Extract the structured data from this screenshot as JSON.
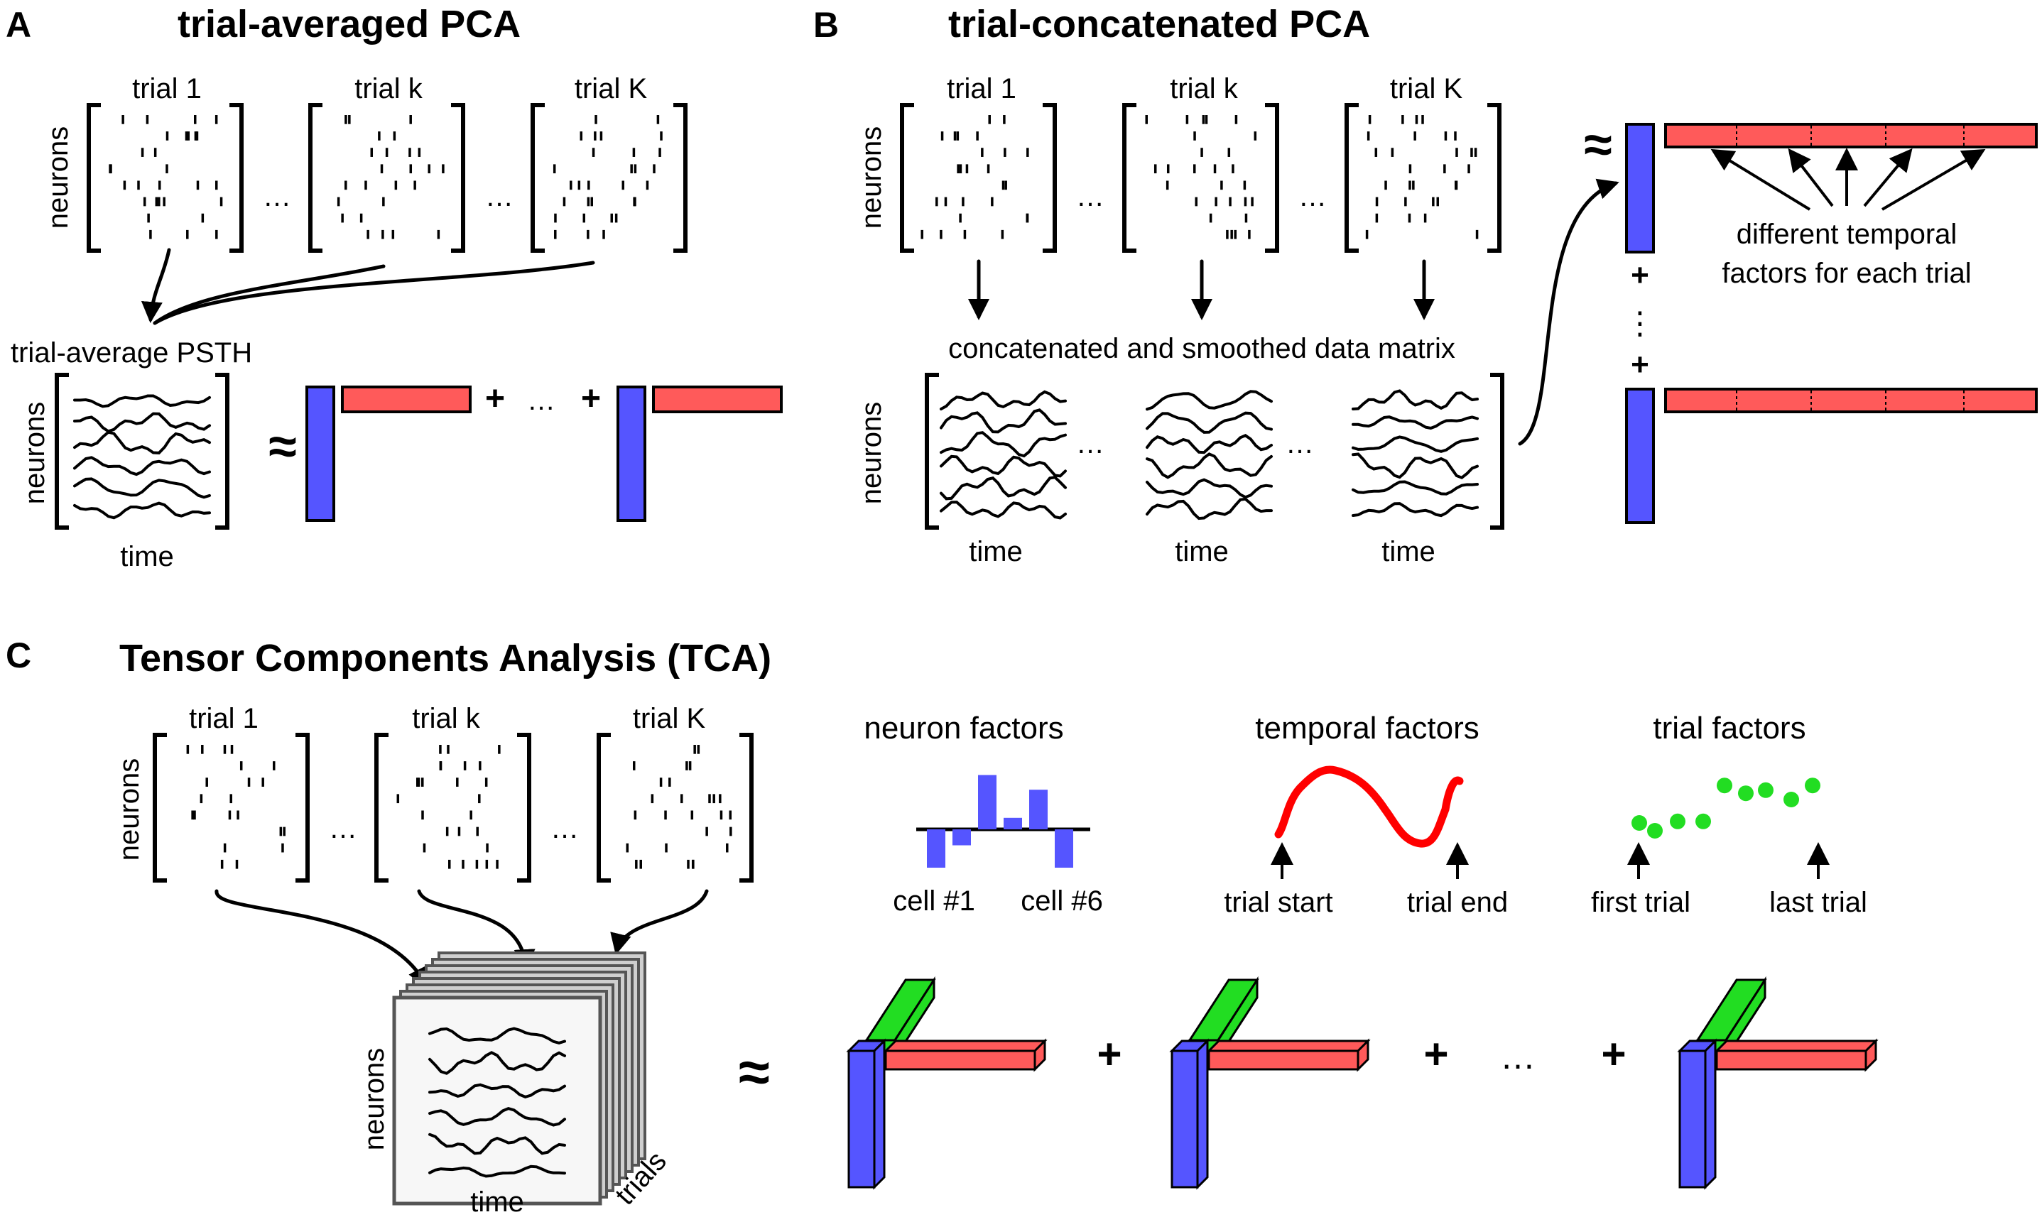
{
  "panels": {
    "a": {
      "letter": "A",
      "title": "trial-averaged PCA",
      "trial_labels": [
        "trial 1",
        "trial k",
        "trial K"
      ],
      "ylabel": "neurons",
      "dots": "…",
      "psth_label": "trial-average PSTH",
      "xlabel": "time",
      "approx": "≈",
      "plus": "+"
    },
    "b": {
      "letter": "B",
      "title": "trial-concatenated PCA",
      "trial_labels": [
        "trial 1",
        "trial k",
        "trial K"
      ],
      "ylabel": "neurons",
      "dots": "…",
      "matrix_label": "concatenated and smoothed data matrix",
      "xlabel": "time",
      "approx": "≈",
      "plus": "+",
      "vdots": "⋮",
      "factor_note_1": "different temporal",
      "factor_note_2": "factors for each trial"
    },
    "c": {
      "letter": "C",
      "title": "Tensor Components Analysis (TCA)",
      "trial_labels": [
        "trial 1",
        "trial k",
        "trial K"
      ],
      "ylabel": "neurons",
      "dots": "…",
      "neuron_factors": "neuron factors",
      "temporal_factors": "temporal factors",
      "trial_factors": "trial factors",
      "cell_first": "cell #1",
      "cell_last": "cell #6",
      "trial_start": "trial start",
      "trial_end": "trial end",
      "first_trial": "first trial",
      "last_trial": "last trial",
      "approx": "≈",
      "plus": "+",
      "cube_neurons": "neurons",
      "cube_time": "time",
      "cube_trials": "trials"
    }
  },
  "colors": {
    "neuron_factor": "#5555ff",
    "temporal_factor": "#ff5a5a",
    "trial_factor": "#22dd22",
    "temporal_curve": "#ff0000"
  },
  "neuron_factor_values": [
    -0.6,
    -0.25,
    0.85,
    0.18,
    0.62,
    -0.6
  ],
  "trial_factor_values": [
    0.1,
    0.0,
    0.12,
    0.12,
    0.58,
    0.48,
    0.52,
    0.4,
    0.58
  ]
}
